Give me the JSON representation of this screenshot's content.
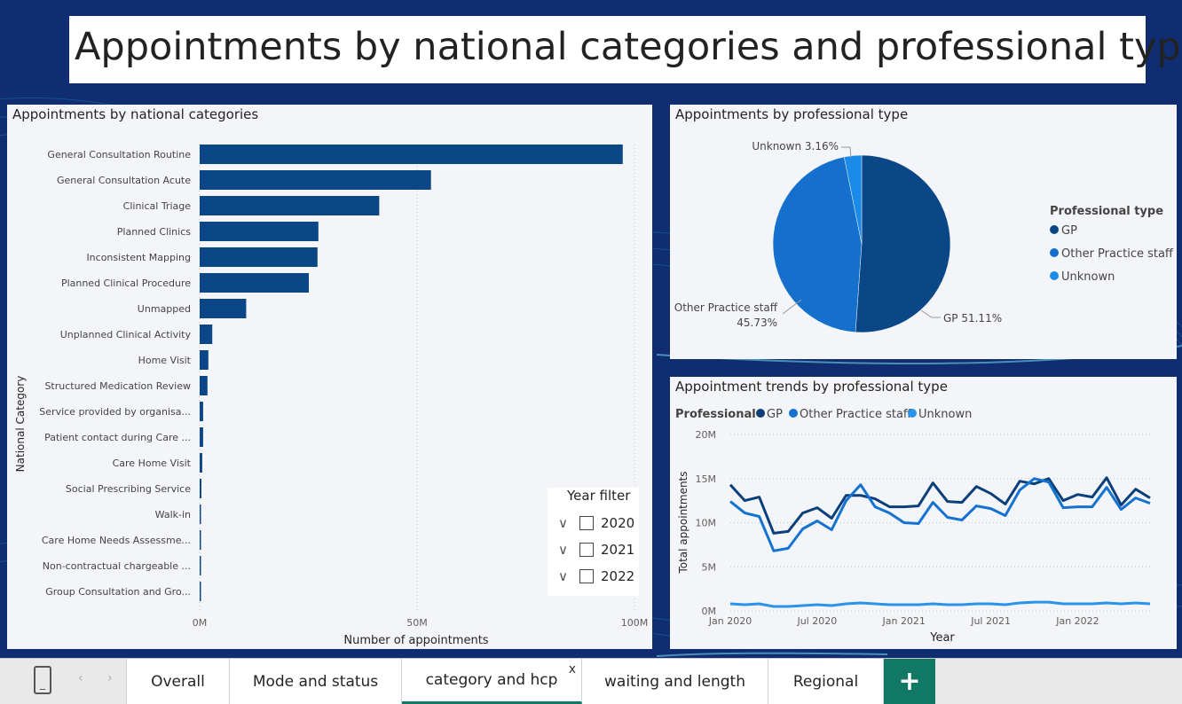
{
  "report_title": "Appointments by national categories and professional types",
  "bar_panel": {
    "title": "Appointments by national categories",
    "ylabel": "National Category",
    "xlabel": "Number of appointments",
    "x_ticks": [
      "0M",
      "50M",
      "100M"
    ]
  },
  "pie_panel": {
    "title": "Appointments by professional type",
    "legend_title": "Professional type",
    "legend": [
      {
        "label": "GP",
        "color": "#0b4786"
      },
      {
        "label": "Other Practice staff",
        "color": "#1470cc"
      },
      {
        "label": "Unknown",
        "color": "#1b8be8"
      }
    ],
    "labels": {
      "unknown": "Unknown 3.16%",
      "other_line1": "Other Practice staff",
      "other_line2": "45.73%",
      "gp": "GP 51.11%"
    }
  },
  "line_panel": {
    "title": "Appointment trends by professional type",
    "legend_title": "Professional",
    "legend": [
      "GP",
      "Other Practice staff",
      "Unknown"
    ],
    "ylabel": "Total appointments",
    "xlabel": "Year",
    "y_ticks": [
      "20M",
      "15M",
      "10M",
      "5M",
      "0M"
    ],
    "x_ticks": [
      "Jan 2020",
      "Jul 2020",
      "Jan 2021",
      "Jul 2021",
      "Jan 2022"
    ]
  },
  "year_filter": {
    "title": "Year filter",
    "options": [
      "2020",
      "2021",
      "2022"
    ]
  },
  "tabs": [
    {
      "label": "Overall"
    },
    {
      "label": "Mode and status"
    },
    {
      "label": "category and hcp"
    },
    {
      "label": "waiting and length"
    },
    {
      "label": "Regional"
    }
  ],
  "active_tab_close": "x",
  "add_tab_label": "+",
  "chart_data": [
    {
      "type": "bar",
      "orientation": "horizontal",
      "title": "Appointments by national categories",
      "xlabel": "Number of appointments",
      "ylabel": "National Category",
      "xlim": [
        0,
        100
      ],
      "unit": "M",
      "color": "#0b4786",
      "categories": [
        "General Consultation Routine",
        "General Consultation Acute",
        "Clinical Triage",
        "Planned Clinics",
        "Inconsistent Mapping",
        "Planned Clinical Procedure",
        "Unmapped",
        "Unplanned Clinical Activity",
        "Home Visit",
        "Structured Medication Review",
        "Service provided by organisa...",
        "Patient contact during Care ...",
        "Care Home Visit",
        "Social Prescribing Service",
        "Walk-in",
        "Care Home Needs Assessme...",
        "Non-contractual chargeable ...",
        "Group Consultation and Gro..."
      ],
      "values": [
        97.3,
        53.2,
        41.3,
        27.3,
        27.1,
        25.1,
        10.7,
        2.9,
        2.0,
        1.8,
        0.8,
        0.8,
        0.6,
        0.4,
        0.3,
        0.3,
        0.2,
        0.1
      ]
    },
    {
      "type": "pie",
      "title": "Appointments by professional type",
      "slices": [
        {
          "label": "GP",
          "value": 51.11,
          "color": "#0b4786"
        },
        {
          "label": "Other Practice staff",
          "value": 45.73,
          "color": "#1470cc"
        },
        {
          "label": "Unknown",
          "value": 3.16,
          "color": "#1b8be8"
        }
      ]
    },
    {
      "type": "line",
      "title": "Appointment trends by professional type",
      "xlabel": "Year",
      "ylabel": "Total appointments",
      "ylim": [
        0,
        20
      ],
      "unit": "M",
      "x": [
        "Jan 2020",
        "Feb 2020",
        "Mar 2020",
        "Apr 2020",
        "May 2020",
        "Jun 2020",
        "Jul 2020",
        "Aug 2020",
        "Sep 2020",
        "Oct 2020",
        "Nov 2020",
        "Dec 2020",
        "Jan 2021",
        "Feb 2021",
        "Mar 2021",
        "Apr 2021",
        "May 2021",
        "Jun 2021",
        "Jul 2021",
        "Aug 2021",
        "Sep 2021",
        "Oct 2021",
        "Nov 2021",
        "Dec 2021",
        "Jan 2022",
        "Feb 2022",
        "Mar 2022",
        "Apr 2022",
        "May 2022",
        "Jun 2022"
      ],
      "series": [
        {
          "name": "GP",
          "color": "#0b3f7a",
          "values": [
            14.3,
            12.5,
            12.9,
            8.8,
            9.0,
            11.1,
            11.7,
            10.5,
            13.1,
            13.1,
            12.7,
            11.8,
            11.8,
            11.9,
            14.5,
            12.4,
            12.3,
            14.1,
            13.3,
            12.1,
            14.7,
            14.4,
            15.0,
            12.5,
            13.2,
            12.9,
            15.1,
            12.0,
            13.8,
            12.8
          ]
        },
        {
          "name": "Other Practice staff",
          "color": "#1473d0",
          "values": [
            12.4,
            11.1,
            10.7,
            6.8,
            7.1,
            9.3,
            10.2,
            9.2,
            12.5,
            14.3,
            11.8,
            11.1,
            10.0,
            9.9,
            12.3,
            10.6,
            10.3,
            11.9,
            11.6,
            10.8,
            13.7,
            15.0,
            14.6,
            11.7,
            11.8,
            11.8,
            14.0,
            11.5,
            12.8,
            12.2
          ]
        },
        {
          "name": "Unknown",
          "color": "#2a93ea",
          "values": [
            0.8,
            0.7,
            0.8,
            0.5,
            0.5,
            0.6,
            0.7,
            0.6,
            0.8,
            0.9,
            0.8,
            0.7,
            0.7,
            0.7,
            0.8,
            0.7,
            0.7,
            0.8,
            0.8,
            0.7,
            0.9,
            1.0,
            1.0,
            0.8,
            0.8,
            0.8,
            0.9,
            0.8,
            0.9,
            0.8
          ]
        }
      ]
    }
  ]
}
